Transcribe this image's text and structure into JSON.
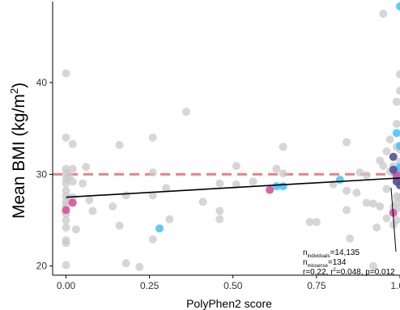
{
  "chart_data": {
    "type": "scatter",
    "xlabel": "PolyPhen2 score",
    "ylabel_main": "Mean BMI (kg/m",
    "ylabel_sup": "2",
    "ylabel_tail": ")",
    "xlim": [
      -0.04,
      1.0
    ],
    "ylim": [
      19.0,
      49.0
    ],
    "x_ticks": [
      0.0,
      0.25,
      0.5,
      0.75,
      1.0
    ],
    "x_tick_labels": [
      "0.00",
      "0.25",
      "0.50",
      "0.75",
      "1.00"
    ],
    "y_ticks": [
      20,
      30,
      40
    ],
    "y_tick_labels": [
      "20",
      "30",
      "40"
    ],
    "threshold": {
      "y": 30,
      "color": "#f08080"
    },
    "trend_line": {
      "x": [
        0.0,
        1.0
      ],
      "y": [
        27.5,
        29.6
      ],
      "color": "#000000"
    },
    "colors": {
      "grey": "#c8c8c8",
      "blue": "#4fc3f7",
      "pink": "#d6539c",
      "navy": "#56509a"
    },
    "points": [
      {
        "x": 0.0,
        "y": 41.0,
        "c": "grey"
      },
      {
        "x": 0.0,
        "y": 34.0,
        "c": "grey"
      },
      {
        "x": 0.0,
        "y": 30.6,
        "c": "grey"
      },
      {
        "x": 0.0,
        "y": 30.1,
        "c": "grey"
      },
      {
        "x": 0.0,
        "y": 29.5,
        "c": "grey"
      },
      {
        "x": 0.0,
        "y": 29.0,
        "c": "grey"
      },
      {
        "x": 0.0,
        "y": 28.2,
        "c": "grey"
      },
      {
        "x": 0.0,
        "y": 27.6,
        "c": "grey"
      },
      {
        "x": 0.0,
        "y": 27.0,
        "c": "grey"
      },
      {
        "x": 0.0,
        "y": 26.6,
        "c": "grey"
      },
      {
        "x": 0.0,
        "y": 25.7,
        "c": "grey"
      },
      {
        "x": 0.0,
        "y": 25.0,
        "c": "grey"
      },
      {
        "x": 0.0,
        "y": 24.2,
        "c": "grey"
      },
      {
        "x": 0.0,
        "y": 22.8,
        "c": "grey"
      },
      {
        "x": 0.0,
        "y": 22.5,
        "c": "grey"
      },
      {
        "x": 0.0,
        "y": 20.1,
        "c": "grey"
      },
      {
        "x": 0.01,
        "y": 29.8,
        "c": "grey"
      },
      {
        "x": 0.01,
        "y": 27.3,
        "c": "grey"
      },
      {
        "x": 0.02,
        "y": 33.3,
        "c": "grey"
      },
      {
        "x": 0.02,
        "y": 30.6,
        "c": "grey"
      },
      {
        "x": 0.02,
        "y": 29.2,
        "c": "grey"
      },
      {
        "x": 0.02,
        "y": 27.5,
        "c": "grey"
      },
      {
        "x": 0.03,
        "y": 24.0,
        "c": "grey"
      },
      {
        "x": 0.05,
        "y": 29.0,
        "c": "grey"
      },
      {
        "x": 0.06,
        "y": 30.8,
        "c": "grey"
      },
      {
        "x": 0.07,
        "y": 27.2,
        "c": "grey"
      },
      {
        "x": 0.08,
        "y": 26.0,
        "c": "grey"
      },
      {
        "x": 0.14,
        "y": 26.5,
        "c": "grey"
      },
      {
        "x": 0.16,
        "y": 33.2,
        "c": "grey"
      },
      {
        "x": 0.16,
        "y": 24.4,
        "c": "grey"
      },
      {
        "x": 0.18,
        "y": 27.7,
        "c": "grey"
      },
      {
        "x": 0.18,
        "y": 20.3,
        "c": "grey"
      },
      {
        "x": 0.22,
        "y": 19.9,
        "c": "grey"
      },
      {
        "x": 0.26,
        "y": 34.0,
        "c": "grey"
      },
      {
        "x": 0.26,
        "y": 30.2,
        "c": "grey"
      },
      {
        "x": 0.26,
        "y": 27.7,
        "c": "grey"
      },
      {
        "x": 0.26,
        "y": 22.9,
        "c": "grey"
      },
      {
        "x": 0.3,
        "y": 28.5,
        "c": "grey"
      },
      {
        "x": 0.31,
        "y": 25.1,
        "c": "grey"
      },
      {
        "x": 0.36,
        "y": 36.8,
        "c": "grey"
      },
      {
        "x": 0.41,
        "y": 27.0,
        "c": "grey"
      },
      {
        "x": 0.46,
        "y": 29.0,
        "c": "grey"
      },
      {
        "x": 0.46,
        "y": 26.0,
        "c": "grey"
      },
      {
        "x": 0.46,
        "y": 25.1,
        "c": "grey"
      },
      {
        "x": 0.51,
        "y": 28.9,
        "c": "grey"
      },
      {
        "x": 0.51,
        "y": 30.9,
        "c": "grey"
      },
      {
        "x": 0.56,
        "y": 29.2,
        "c": "grey"
      },
      {
        "x": 0.63,
        "y": 30.6,
        "c": "grey"
      },
      {
        "x": 0.65,
        "y": 33.0,
        "c": "grey"
      },
      {
        "x": 0.65,
        "y": 30.1,
        "c": "grey"
      },
      {
        "x": 0.73,
        "y": 24.8,
        "c": "grey"
      },
      {
        "x": 0.75,
        "y": 24.8,
        "c": "grey"
      },
      {
        "x": 0.8,
        "y": 28.9,
        "c": "grey"
      },
      {
        "x": 0.84,
        "y": 33.5,
        "c": "grey"
      },
      {
        "x": 0.84,
        "y": 28.2,
        "c": "grey"
      },
      {
        "x": 0.84,
        "y": 26.1,
        "c": "grey"
      },
      {
        "x": 0.85,
        "y": 23.0,
        "c": "grey"
      },
      {
        "x": 0.87,
        "y": 28.0,
        "c": "grey"
      },
      {
        "x": 0.88,
        "y": 30.2,
        "c": "grey"
      },
      {
        "x": 0.9,
        "y": 29.9,
        "c": "grey"
      },
      {
        "x": 0.9,
        "y": 26.9,
        "c": "grey"
      },
      {
        "x": 0.92,
        "y": 26.8,
        "c": "grey"
      },
      {
        "x": 0.93,
        "y": 24.2,
        "c": "grey"
      },
      {
        "x": 0.94,
        "y": 31.5,
        "c": "grey"
      },
      {
        "x": 0.94,
        "y": 26.5,
        "c": "grey"
      },
      {
        "x": 0.95,
        "y": 47.5,
        "c": "grey"
      },
      {
        "x": 0.95,
        "y": 30.9,
        "c": "grey"
      },
      {
        "x": 0.96,
        "y": 32.5,
        "c": "grey"
      },
      {
        "x": 0.96,
        "y": 28.4,
        "c": "grey"
      },
      {
        "x": 0.96,
        "y": 25.2,
        "c": "grey"
      },
      {
        "x": 0.97,
        "y": 33.8,
        "c": "grey"
      },
      {
        "x": 0.97,
        "y": 30.3,
        "c": "grey"
      },
      {
        "x": 0.98,
        "y": 30.9,
        "c": "grey"
      },
      {
        "x": 0.98,
        "y": 26.4,
        "c": "grey"
      },
      {
        "x": 0.98,
        "y": 24.5,
        "c": "grey"
      },
      {
        "x": 0.99,
        "y": 37.9,
        "c": "grey"
      },
      {
        "x": 0.99,
        "y": 35.5,
        "c": "grey"
      },
      {
        "x": 0.99,
        "y": 33.0,
        "c": "grey"
      },
      {
        "x": 0.99,
        "y": 29.3,
        "c": "grey"
      },
      {
        "x": 0.99,
        "y": 27.6,
        "c": "grey"
      },
      {
        "x": 0.99,
        "y": 26.9,
        "c": "grey"
      },
      {
        "x": 0.99,
        "y": 25.0,
        "c": "grey"
      },
      {
        "x": 1.0,
        "y": 40.9,
        "c": "grey"
      },
      {
        "x": 1.0,
        "y": 39.1,
        "c": "grey"
      },
      {
        "x": 1.0,
        "y": 32.7,
        "c": "grey"
      },
      {
        "x": 1.0,
        "y": 31.4,
        "c": "grey"
      },
      {
        "x": 1.0,
        "y": 30.6,
        "c": "grey"
      },
      {
        "x": 1.0,
        "y": 29.3,
        "c": "grey"
      },
      {
        "x": 1.0,
        "y": 27.5,
        "c": "grey"
      },
      {
        "x": 1.0,
        "y": 26.3,
        "c": "grey"
      },
      {
        "x": 0.92,
        "y": 20.0,
        "c": "grey"
      },
      {
        "x": 1.0,
        "y": 48.3,
        "c": "blue"
      },
      {
        "x": 0.99,
        "y": 34.5,
        "c": "blue"
      },
      {
        "x": 1.0,
        "y": 33.1,
        "c": "blue"
      },
      {
        "x": 1.0,
        "y": 30.8,
        "c": "blue"
      },
      {
        "x": 0.99,
        "y": 29.6,
        "c": "blue"
      },
      {
        "x": 0.63,
        "y": 28.7,
        "c": "blue"
      },
      {
        "x": 0.65,
        "y": 28.7,
        "c": "blue"
      },
      {
        "x": 0.82,
        "y": 29.4,
        "c": "blue"
      },
      {
        "x": 0.28,
        "y": 24.1,
        "c": "blue"
      },
      {
        "x": 0.99,
        "y": 30.3,
        "c": "blue"
      },
      {
        "x": 0.02,
        "y": 26.9,
        "c": "pink"
      },
      {
        "x": 0.61,
        "y": 28.3,
        "c": "pink"
      },
      {
        "x": 0.98,
        "y": 25.8,
        "c": "pink"
      },
      {
        "x": 0.99,
        "y": 29.9,
        "c": "pink"
      },
      {
        "x": 0.0,
        "y": 26.1,
        "c": "pink"
      },
      {
        "x": 0.98,
        "y": 31.9,
        "c": "navy"
      },
      {
        "x": 0.98,
        "y": 30.5,
        "c": "navy"
      },
      {
        "x": 0.99,
        "y": 29.2,
        "c": "navy"
      },
      {
        "x": 1.0,
        "y": 28.8,
        "c": "navy"
      }
    ],
    "annotation": {
      "n_ind_label": "n",
      "n_ind_sub": "individuals",
      "n_ind_value": "=14,135",
      "n_mis_label": "n",
      "n_mis_sub": "missense",
      "n_mis_value": "=134",
      "stats_a": "r=0.22, r",
      "stats_sup": "2",
      "stats_b": "=0.048, p=0.012"
    }
  }
}
